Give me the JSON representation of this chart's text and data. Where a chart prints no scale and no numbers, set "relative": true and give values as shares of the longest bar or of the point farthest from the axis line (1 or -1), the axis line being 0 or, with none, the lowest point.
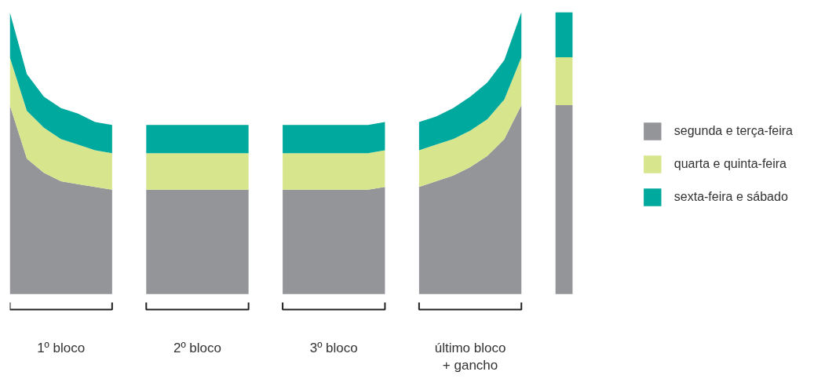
{
  "chart_data": {
    "type": "area",
    "stacked": true,
    "relative": true,
    "legend": "right",
    "grid": false,
    "categories": [
      null,
      null,
      null,
      "1º bloco",
      null,
      null,
      null,
      null,
      null,
      null,
      null,
      "2º bloco",
      null,
      null,
      null,
      null,
      null,
      null,
      null,
      "3º bloco",
      null,
      null,
      null,
      null,
      null,
      null,
      null,
      "último bloco\n+ gancho",
      null,
      null,
      null,
      null,
      null,
      null
    ],
    "series": [
      {
        "name": "segunda e terça-feira",
        "color": "#939598",
        "values": [
          0.67,
          0.48,
          0.43,
          0.4,
          0.39,
          0.38,
          0.37,
          null,
          0.37,
          0.37,
          0.37,
          0.37,
          0.37,
          0.37,
          0.37,
          null,
          0.37,
          0.37,
          0.37,
          0.37,
          0.37,
          0.37,
          0.38,
          null,
          0.38,
          0.4,
          0.42,
          0.45,
          0.49,
          0.55,
          0.67,
          null,
          0.67,
          0.67
        ]
      },
      {
        "name": "quarta e quinta-feira",
        "color": "#d7e58c",
        "values": [
          0.17,
          0.17,
          0.16,
          0.15,
          0.14,
          0.13,
          0.13,
          null,
          0.13,
          0.13,
          0.13,
          0.13,
          0.13,
          0.13,
          0.13,
          null,
          0.13,
          0.13,
          0.13,
          0.13,
          0.13,
          0.13,
          0.13,
          null,
          0.13,
          0.13,
          0.13,
          0.13,
          0.13,
          0.14,
          0.17,
          null,
          0.17,
          0.17
        ]
      },
      {
        "name": "sexta-feira e sábado",
        "color": "#00a99d",
        "values": [
          0.16,
          0.13,
          0.11,
          0.11,
          0.11,
          0.1,
          0.1,
          null,
          0.1,
          0.1,
          0.1,
          0.1,
          0.1,
          0.1,
          0.1,
          null,
          0.1,
          0.1,
          0.1,
          0.1,
          0.1,
          0.1,
          0.1,
          null,
          0.1,
          0.1,
          0.11,
          0.12,
          0.13,
          0.14,
          0.16,
          null,
          0.16,
          0.16
        ]
      }
    ]
  }
}
